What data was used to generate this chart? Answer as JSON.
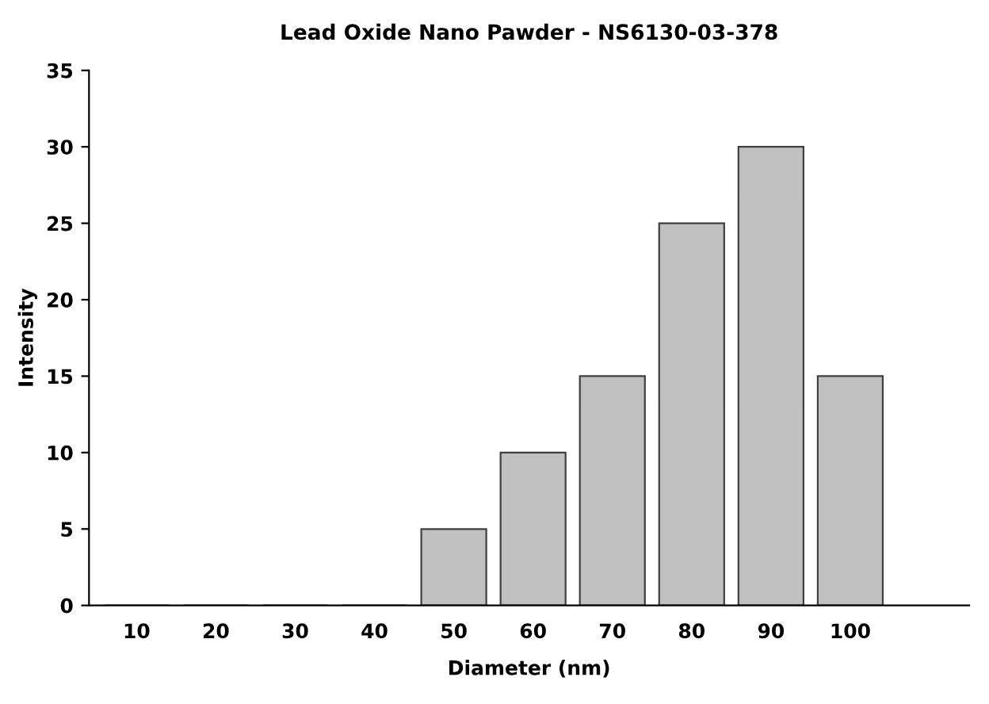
{
  "chart_data": {
    "type": "bar",
    "title": "Lead Oxide Nano Pawder - NS6130-03-378",
    "xlabel": "Diameter (nm)",
    "ylabel": "Intensity",
    "categories": [
      "10",
      "20",
      "30",
      "40",
      "50",
      "60",
      "70",
      "80",
      "90",
      "100",
      null
    ],
    "values": [
      0,
      0,
      0,
      0,
      5,
      10,
      15,
      25,
      30,
      15,
      null
    ],
    "color": "#c0c0c0",
    "ylim": [
      0,
      35
    ],
    "yticks": [
      0,
      5,
      10,
      15,
      20,
      25,
      30,
      35
    ],
    "grid": false,
    "legend": false
  }
}
